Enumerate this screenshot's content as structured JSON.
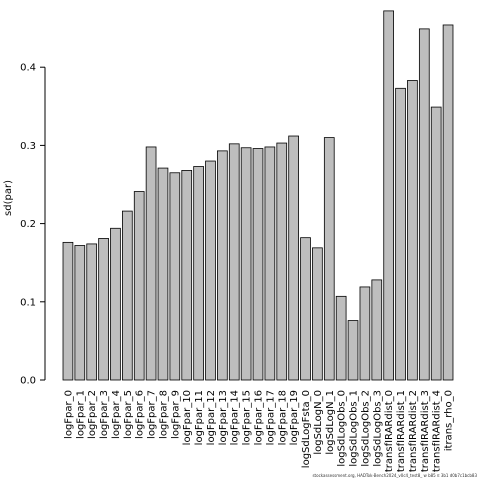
{
  "chart_data": {
    "type": "bar",
    "ylabel": "sd(par)",
    "ylim": [
      0,
      0.47
    ],
    "yticks": [
      0.0,
      0.1,
      0.2,
      0.3,
      0.4
    ],
    "ytick_labels": [
      "0.0",
      "0.1",
      "0.2",
      "0.3",
      "0.4"
    ],
    "bar_color": "#bebebe",
    "bar_edge_color": "#000000",
    "grid": false,
    "categories": [
      "logFpar_0",
      "logFpar_1",
      "logFpar_2",
      "logFpar_3",
      "logFpar_4",
      "logFpar_5",
      "logFpar_6",
      "logFpar_7",
      "logFpar_8",
      "logFpar_9",
      "logFpar_10",
      "logFpar_11",
      "logFpar_12",
      "logFpar_13",
      "logFpar_14",
      "logFpar_15",
      "logFpar_16",
      "logFpar_17",
      "logFpar_18",
      "logFpar_19",
      "logSdLogFsta_0",
      "logSdLogN_0",
      "logSdLogN_1",
      "logSdLogObs_0",
      "logSdLogObs_1",
      "logSdLogObs_2",
      "logSdLogObs_3",
      "transfIRARdist_0",
      "transfIRARdist_1",
      "transfIRARdist_2",
      "transfIRARdist_3",
      "transfIRARdist_4",
      "itrans_rho_0"
    ],
    "values": [
      0.176,
      0.172,
      0.174,
      0.181,
      0.194,
      0.216,
      0.241,
      0.298,
      0.271,
      0.265,
      0.268,
      0.273,
      0.28,
      0.293,
      0.302,
      0.297,
      0.296,
      0.298,
      0.303,
      0.312,
      0.182,
      0.169,
      0.31,
      0.107,
      0.076,
      0.119,
      0.128,
      0.472,
      0.373,
      0.383,
      0.449,
      0.349,
      0.454
    ]
  },
  "credit": "stockassessment.org, HADTok-Bench2024_v0c4_test8_ w b85 ¤ 3b1 d0b7c1bcb83"
}
